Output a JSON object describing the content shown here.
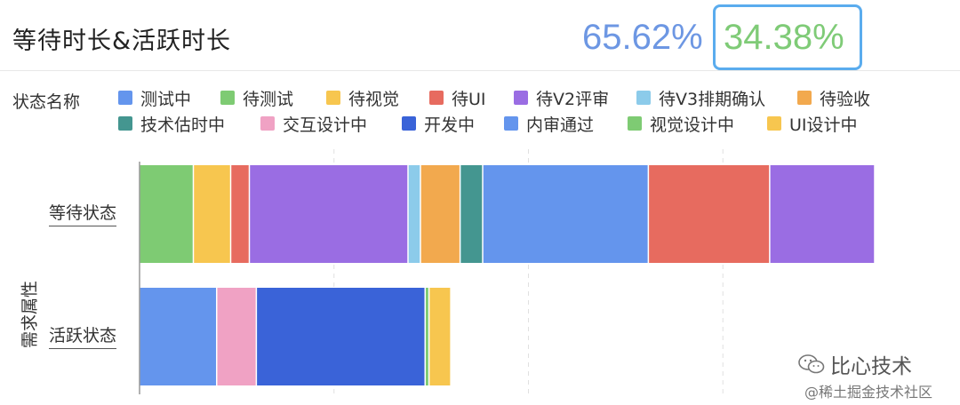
{
  "header": {
    "title": "等待时长&活跃时长",
    "wait_pct": "65.62%",
    "active_pct": "34.38%"
  },
  "legend": {
    "title": "状态名称",
    "items": [
      {
        "label": "测试中",
        "color": "#6495ed"
      },
      {
        "label": "待测试",
        "color": "#7ecb73"
      },
      {
        "label": "待视觉",
        "color": "#f7c64f"
      },
      {
        "label": "待UI",
        "color": "#e76b5f"
      },
      {
        "label": "待V2评审",
        "color": "#9a6de3"
      },
      {
        "label": "待V3排期确认",
        "color": "#8ccbea"
      },
      {
        "label": "待验收",
        "color": "#f2a94e"
      },
      {
        "label": "技术估时中",
        "color": "#449690"
      },
      {
        "label": "交互设计中",
        "color": "#f0a2c4"
      },
      {
        "label": "开发中",
        "color": "#3a63d8"
      },
      {
        "label": "内审通过",
        "color": "#6495ed"
      },
      {
        "label": "视觉设计中",
        "color": "#7ecb73"
      },
      {
        "label": "UI设计中",
        "color": "#f7c64f"
      }
    ]
  },
  "axis": {
    "y_title": "需求属性"
  },
  "chart_data": {
    "type": "bar",
    "orientation": "horizontal",
    "stacked": true,
    "categories": [
      "等待状态",
      "活跃状态"
    ],
    "xlim": [
      0,
      100
    ],
    "grid": "vertical dashed",
    "rows": [
      {
        "category": "等待状态",
        "segments": [
          {
            "status": "待测试",
            "value": 7.0,
            "color": "#7ecb73"
          },
          {
            "status": "待视觉",
            "value": 4.8,
            "color": "#f7c64f"
          },
          {
            "status": "待UI",
            "value": 2.4,
            "color": "#e76b5f"
          },
          {
            "status": "待V2评审",
            "value": 20.4,
            "color": "#9a6de3"
          },
          {
            "status": "待V3排期确认",
            "value": 1.6,
            "color": "#8ccbea"
          },
          {
            "status": "待验收",
            "value": 5.1,
            "color": "#f2a94e"
          },
          {
            "status": "技术估时中",
            "value": 2.9,
            "color": "#449690"
          },
          {
            "status": "内审通过",
            "value": 21.3,
            "color": "#6495ed"
          },
          {
            "status": "待UI",
            "value": 15.6,
            "color": "#e76b5f"
          },
          {
            "status": "待V2评审",
            "value": 13.5,
            "color": "#9a6de3"
          }
        ]
      },
      {
        "category": "活跃状态",
        "segments": [
          {
            "status": "测试中",
            "value": 10.0,
            "color": "#6495ed"
          },
          {
            "status": "交互设计中",
            "value": 5.1,
            "color": "#f0a2c4"
          },
          {
            "status": "开发中",
            "value": 21.7,
            "color": "#3a63d8"
          },
          {
            "status": "视觉设计中",
            "value": 0.5,
            "color": "#7ecb73"
          },
          {
            "status": "UI设计中",
            "value": 2.8,
            "color": "#f7c64f"
          }
        ]
      }
    ]
  },
  "watermark": {
    "line1": "比心技术",
    "line2": "@稀土掘金技术社区"
  }
}
